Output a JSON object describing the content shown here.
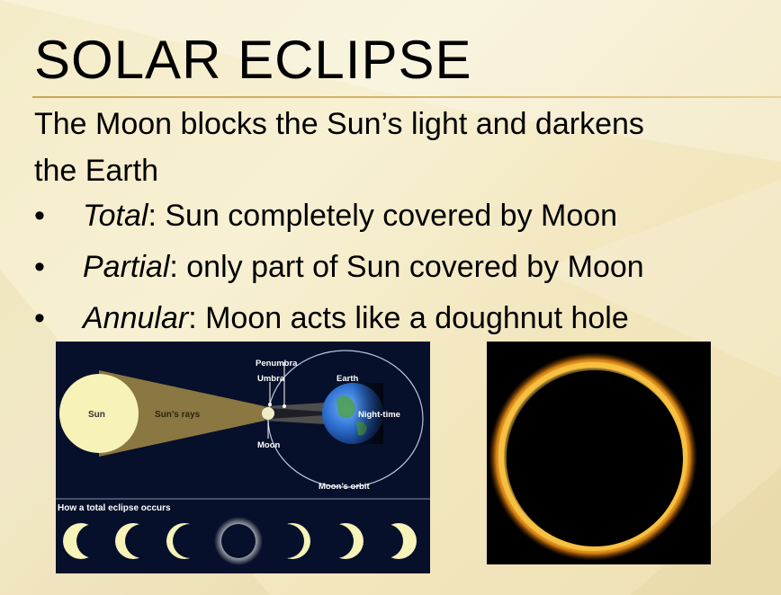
{
  "slide": {
    "title": "SOLAR ECLIPSE",
    "intro": "The Moon blocks the Sun’s light and darkens the Earth",
    "bullet_glyph": "•",
    "bullets": [
      {
        "term": "Total",
        "rest": ": Sun completely covered by Moon"
      },
      {
        "term": "Partial",
        "rest": ": only part of Sun covered by Moon"
      },
      {
        "term": "Annular",
        "rest": ": Moon acts like a doughnut hole"
      }
    ]
  },
  "diagram": {
    "labels": {
      "sun": "Sun",
      "sun_rays": "Sun’s rays",
      "penumbra": "Penumbra",
      "umbra": "Umbra",
      "earth": "Earth",
      "night_time": "Night-time",
      "moon": "Moon",
      "moons_orbit": "Moon’s orbit"
    },
    "caption": "How a total eclipse occurs",
    "phase_count": 7
  },
  "photo": {
    "subject": "annular-eclipse-ring"
  },
  "colors": {
    "title_rule": "#c9a55a",
    "diagram_bg": "#07102a",
    "sun_fill": "#f6f2b8",
    "ring_gold": "#f3b12a"
  }
}
